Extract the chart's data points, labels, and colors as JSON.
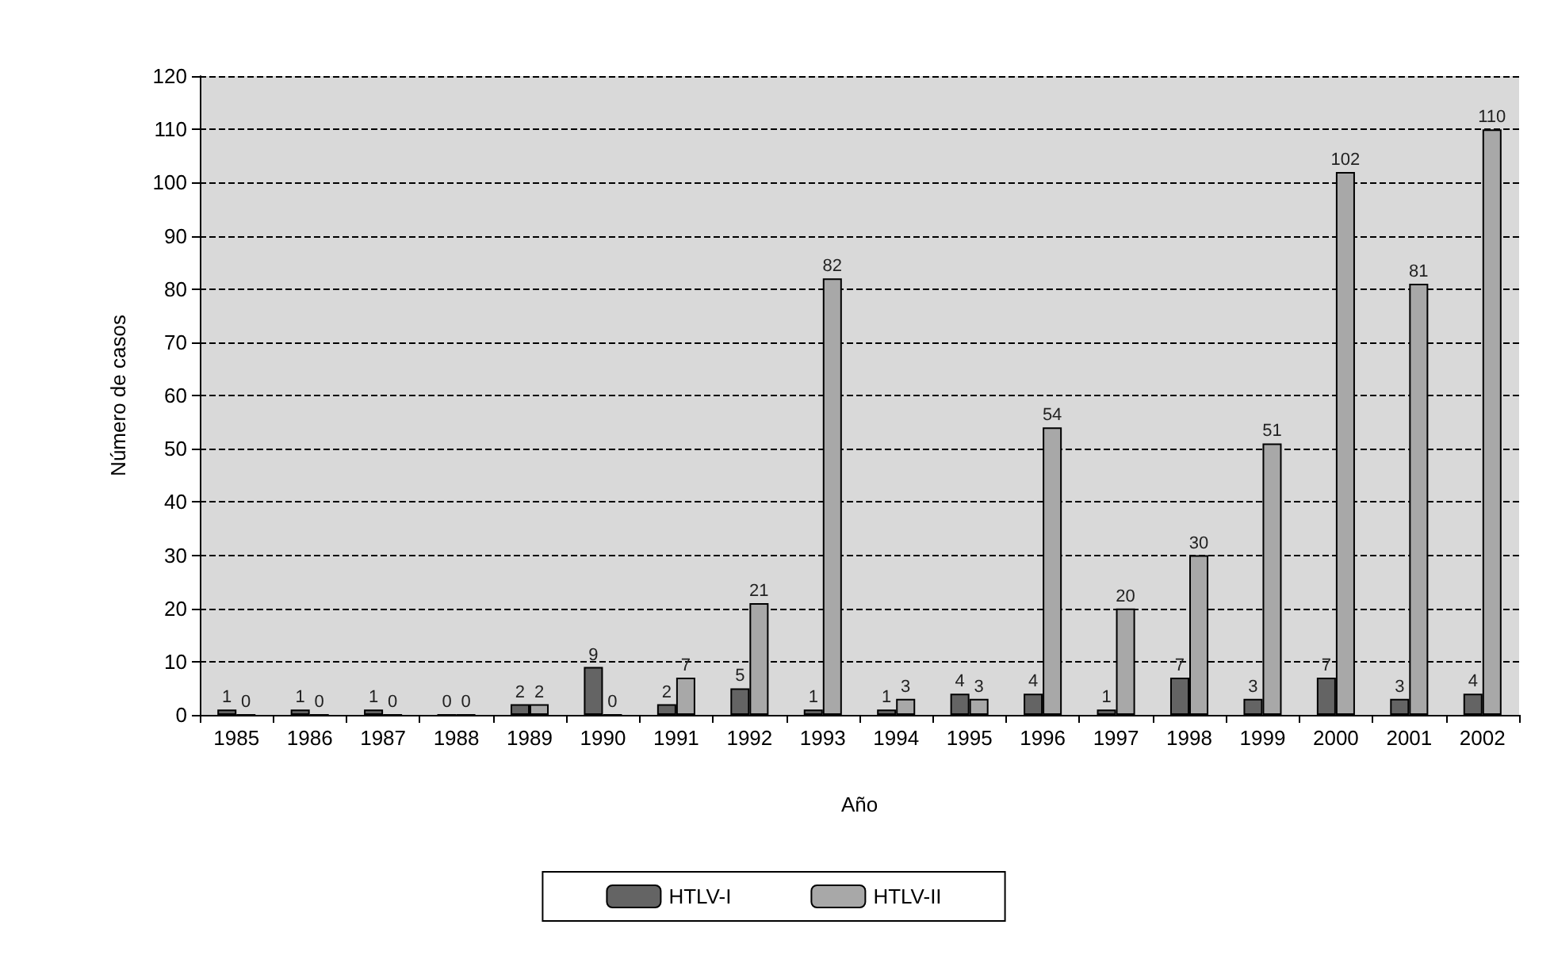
{
  "chart_data": {
    "type": "bar",
    "xlabel": "Año",
    "ylabel": "Número de casos",
    "categories": [
      "1985",
      "1986",
      "1987",
      "1988",
      "1989",
      "1990",
      "1991",
      "1992",
      "1993",
      "1994",
      "1995",
      "1996",
      "1997",
      "1998",
      "1999",
      "2000",
      "2001",
      "2002"
    ],
    "series": [
      {
        "name": "HTLV-I",
        "color": "#646464",
        "values": [
          1,
          1,
          1,
          0,
          2,
          9,
          2,
          5,
          1,
          1,
          4,
          4,
          1,
          7,
          3,
          7,
          3,
          4
        ]
      },
      {
        "name": "HTLV-II",
        "color": "#a8a8a8",
        "values": [
          0,
          0,
          0,
          0,
          2,
          0,
          7,
          21,
          82,
          3,
          3,
          54,
          20,
          30,
          51,
          102,
          81,
          110
        ]
      }
    ],
    "ylim": [
      0,
      120
    ],
    "yticks": [
      0,
      10,
      20,
      30,
      40,
      50,
      60,
      70,
      80,
      90,
      100,
      110,
      120
    ],
    "grid": "y",
    "legend": "bottom",
    "data_labels": true
  }
}
